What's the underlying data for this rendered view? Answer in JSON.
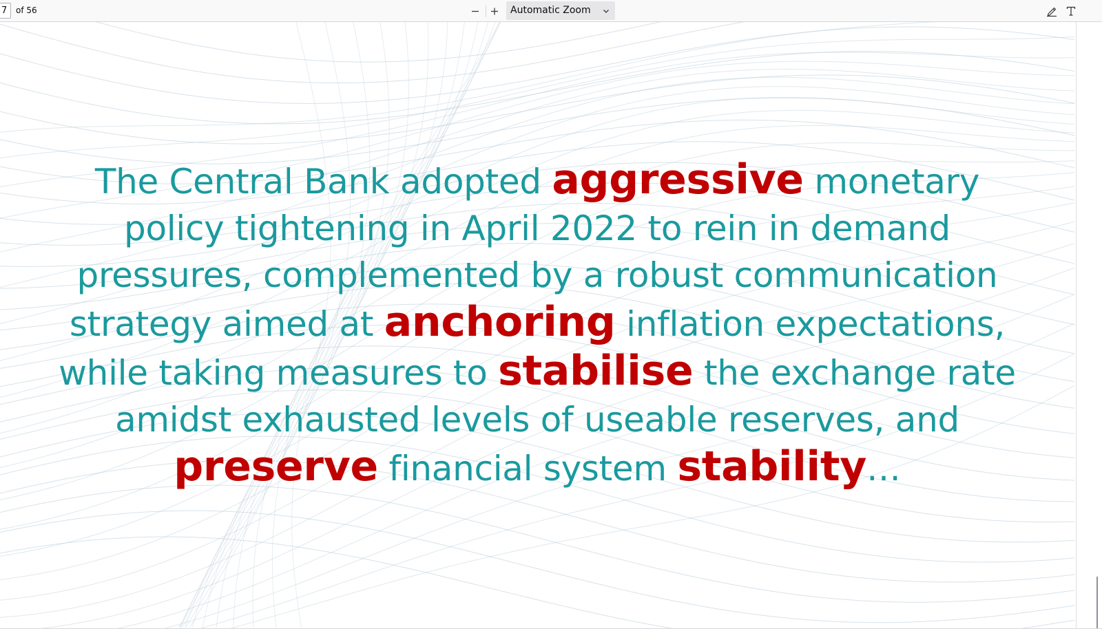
{
  "toolbar": {
    "page_number": "7",
    "page_count_label": "of 56",
    "zoom_label": "Automatic Zoom",
    "icons": {
      "zoom_out": "minus-icon",
      "zoom_in": "plus-icon",
      "zoom_dropdown": "chevron-down-icon",
      "highlight": "pen-icon",
      "text": "text-icon"
    }
  },
  "document": {
    "segments": [
      {
        "text": "The Central Bank adopted ",
        "bold": false
      },
      {
        "text": "aggressive",
        "bold": true
      },
      {
        "text": " monetary policy tightening in April 2022 to rein in demand pressures, complemented by a robust communication strategy aimed at ",
        "bold": false
      },
      {
        "text": "anchoring",
        "bold": true
      },
      {
        "text": " inflation expectations, while taking measures to ",
        "bold": false
      },
      {
        "text": "stabilise",
        "bold": true
      },
      {
        "text": " the exchange rate amidst exhausted levels of useable reserves, and ",
        "bold": false
      },
      {
        "text": "preserve",
        "bold": true
      },
      {
        "text": " financial system ",
        "bold": false
      },
      {
        "text": "stability",
        "bold": true
      },
      {
        "text": "…",
        "bold": false
      }
    ],
    "colors": {
      "body_text": "#1a9a9e",
      "keyword": "#c00000",
      "wave_lines": "#b7cbd8"
    }
  }
}
